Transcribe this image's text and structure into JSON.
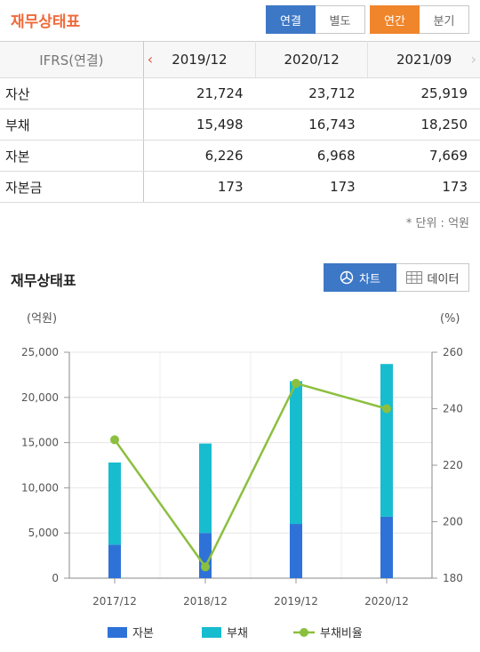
{
  "header": {
    "title": "재무상태표",
    "tabs": [
      {
        "label": "연결",
        "active": true
      },
      {
        "label": "별도",
        "active": false
      },
      {
        "label": "연간",
        "active": true
      },
      {
        "label": "분기",
        "active": false
      }
    ]
  },
  "table": {
    "header_label": "IFRS(연결)",
    "columns": [
      "2019/12",
      "2020/12",
      "2021/09"
    ],
    "rows": [
      {
        "label": "자산",
        "values": [
          "21,724",
          "23,712",
          "25,919"
        ]
      },
      {
        "label": "부채",
        "values": [
          "15,498",
          "16,743",
          "18,250"
        ]
      },
      {
        "label": "자본",
        "values": [
          "6,226",
          "6,968",
          "7,669"
        ]
      },
      {
        "label": "자본금",
        "values": [
          "173",
          "173",
          "173"
        ]
      }
    ],
    "unit_note": "* 단위 : 억원"
  },
  "chart_section": {
    "title": "재무상태표",
    "chart_button": "차트",
    "data_button": "데이터",
    "left_axis_unit": "(억원)",
    "right_axis_unit": "(%)"
  },
  "colors": {
    "equity": "#2e72d8",
    "liability": "#18bccf",
    "ratio": "#8cbf3f",
    "accent_orange": "#f0862c",
    "accent_blue": "#3d78c6",
    "title_orange": "#f06a3a"
  },
  "chart_data": {
    "type": "bar",
    "stacked": true,
    "categories": [
      "2017/12",
      "2018/12",
      "2019/12",
      "2020/12"
    ],
    "series": [
      {
        "name": "자본",
        "axis": "left",
        "values": [
          3700,
          5000,
          6000,
          6800
        ]
      },
      {
        "name": "부채",
        "axis": "left",
        "values": [
          9100,
          9900,
          15800,
          16900
        ]
      },
      {
        "name": "부채비율",
        "type": "line",
        "axis": "right",
        "values": [
          229,
          184,
          249,
          240
        ]
      }
    ],
    "yleft": {
      "min": 0,
      "max": 25000,
      "ticks": [
        "0",
        "5,000",
        "10,000",
        "15,000",
        "20,000",
        "25,000"
      ]
    },
    "yright": {
      "min": 180,
      "max": 260,
      "ticks": [
        "180",
        "200",
        "220",
        "240",
        "260"
      ]
    },
    "legend": "bottom",
    "grid": true
  }
}
